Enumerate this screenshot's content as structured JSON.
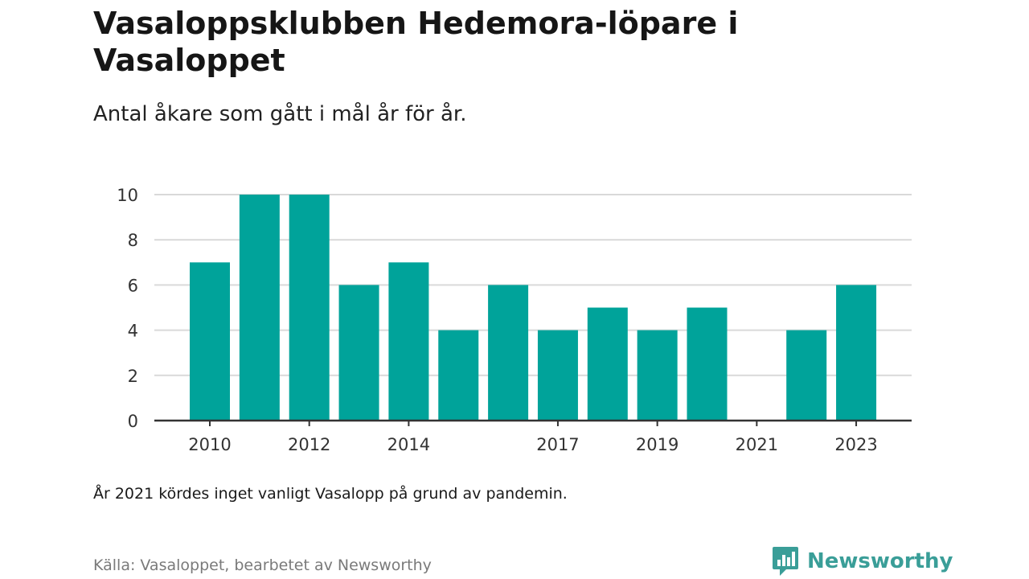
{
  "header": {
    "title": "Vasaloppsklubben Hedemora-löpare i Vasaloppet",
    "subtitle": "Antal åkare som gått i mål år för år."
  },
  "footer": {
    "note": "År 2021 kördes inget vanligt Vasalopp på grund av pandemin.",
    "source": "Källa: Vasaloppet, bearbetet av Newsworthy",
    "brand": "Newsworthy",
    "brand_icon": "newsworthy-logo-icon"
  },
  "colors": {
    "bar": "#00a39a",
    "grid": "#d9d9d9",
    "axis": "#333333",
    "brand": "#3a9e98"
  },
  "chart_data": {
    "type": "bar",
    "categories": [
      "2010",
      "2011",
      "2012",
      "2013",
      "2014",
      "2015",
      "2016",
      "2017",
      "2018",
      "2019",
      "2020",
      "2021",
      "2022",
      "2023"
    ],
    "values": [
      7,
      10,
      10,
      6,
      7,
      4,
      6,
      4,
      5,
      4,
      5,
      0,
      4,
      6
    ],
    "x_tick_labels": [
      "2010",
      "2012",
      "2014",
      "2017",
      "2019",
      "2021",
      "2023"
    ],
    "y_ticks": [
      0,
      2,
      4,
      6,
      8,
      10
    ],
    "ylim": [
      0,
      10
    ],
    "xlabel": "",
    "ylabel": "",
    "grid": true,
    "legend": "none"
  }
}
